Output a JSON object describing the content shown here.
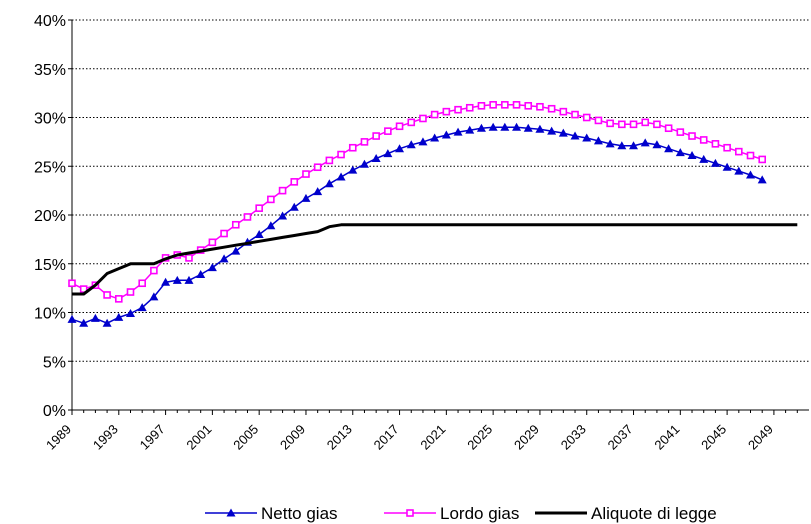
{
  "chart_data": {
    "type": "line",
    "title": "",
    "xlabel": "",
    "ylabel": "",
    "xlim": [
      1989,
      2052
    ],
    "ylim": [
      0,
      40
    ],
    "y_ticks": [
      "0%",
      "5%",
      "10%",
      "15%",
      "20%",
      "25%",
      "30%",
      "35%",
      "40%"
    ],
    "x_ticks": [
      "1989",
      "1993",
      "1997",
      "2001",
      "2005",
      "2009",
      "2013",
      "2017",
      "2021",
      "2025",
      "2029",
      "2033",
      "2037",
      "2041",
      "2045",
      "2049"
    ],
    "grid": "horizontal dotted",
    "legend_position": "bottom",
    "colors": {
      "netto": "#0000cc",
      "lordo": "#ff00ff",
      "aliquote": "#000000",
      "grid": "#000000"
    },
    "series": [
      {
        "name": "Netto gias",
        "marker": "triangle",
        "points": [
          [
            1989,
            9.3
          ],
          [
            1990,
            8.9
          ],
          [
            1991,
            9.4
          ],
          [
            1992,
            8.9
          ],
          [
            1993,
            9.5
          ],
          [
            1994,
            9.9
          ],
          [
            1995,
            10.5
          ],
          [
            1996,
            11.6
          ],
          [
            1997,
            13.1
          ],
          [
            1998,
            13.3
          ],
          [
            1999,
            13.3
          ],
          [
            2000,
            13.9
          ],
          [
            2001,
            14.6
          ],
          [
            2002,
            15.5
          ],
          [
            2003,
            16.3
          ],
          [
            2004,
            17.2
          ],
          [
            2005,
            18.0
          ],
          [
            2006,
            18.9
          ],
          [
            2007,
            19.9
          ],
          [
            2008,
            20.8
          ],
          [
            2009,
            21.7
          ],
          [
            2010,
            22.4
          ],
          [
            2011,
            23.2
          ],
          [
            2012,
            23.9
          ],
          [
            2013,
            24.6
          ],
          [
            2014,
            25.2
          ],
          [
            2015,
            25.8
          ],
          [
            2016,
            26.3
          ],
          [
            2017,
            26.8
          ],
          [
            2018,
            27.2
          ],
          [
            2019,
            27.5
          ],
          [
            2020,
            27.9
          ],
          [
            2021,
            28.2
          ],
          [
            2022,
            28.5
          ],
          [
            2023,
            28.7
          ],
          [
            2024,
            28.9
          ],
          [
            2025,
            29.0
          ],
          [
            2026,
            29.0
          ],
          [
            2027,
            29.0
          ],
          [
            2028,
            28.9
          ],
          [
            2029,
            28.8
          ],
          [
            2030,
            28.6
          ],
          [
            2031,
            28.4
          ],
          [
            2032,
            28.1
          ],
          [
            2033,
            27.9
          ],
          [
            2034,
            27.6
          ],
          [
            2035,
            27.3
          ],
          [
            2036,
            27.1
          ],
          [
            2037,
            27.1
          ],
          [
            2038,
            27.4
          ],
          [
            2039,
            27.2
          ],
          [
            2040,
            26.8
          ],
          [
            2041,
            26.4
          ],
          [
            2042,
            26.1
          ],
          [
            2043,
            25.7
          ],
          [
            2044,
            25.3
          ],
          [
            2045,
            24.9
          ],
          [
            2046,
            24.5
          ],
          [
            2047,
            24.1
          ],
          [
            2048,
            23.6
          ]
        ]
      },
      {
        "name": "Lordo gias",
        "marker": "square",
        "points": [
          [
            1989,
            13.0
          ],
          [
            1990,
            12.4
          ],
          [
            1991,
            12.8
          ],
          [
            1992,
            11.8
          ],
          [
            1993,
            11.4
          ],
          [
            1994,
            12.1
          ],
          [
            1995,
            13.0
          ],
          [
            1996,
            14.3
          ],
          [
            1997,
            15.6
          ],
          [
            1998,
            15.9
          ],
          [
            1999,
            15.6
          ],
          [
            2000,
            16.4
          ],
          [
            2001,
            17.2
          ],
          [
            2002,
            18.1
          ],
          [
            2003,
            19.0
          ],
          [
            2004,
            19.8
          ],
          [
            2005,
            20.7
          ],
          [
            2006,
            21.6
          ],
          [
            2007,
            22.5
          ],
          [
            2008,
            23.4
          ],
          [
            2009,
            24.2
          ],
          [
            2010,
            24.9
          ],
          [
            2011,
            25.6
          ],
          [
            2012,
            26.2
          ],
          [
            2013,
            26.9
          ],
          [
            2014,
            27.5
          ],
          [
            2015,
            28.1
          ],
          [
            2016,
            28.6
          ],
          [
            2017,
            29.1
          ],
          [
            2018,
            29.5
          ],
          [
            2019,
            29.9
          ],
          [
            2020,
            30.3
          ],
          [
            2021,
            30.6
          ],
          [
            2022,
            30.8
          ],
          [
            2023,
            31.0
          ],
          [
            2024,
            31.2
          ],
          [
            2025,
            31.3
          ],
          [
            2026,
            31.3
          ],
          [
            2027,
            31.3
          ],
          [
            2028,
            31.2
          ],
          [
            2029,
            31.1
          ],
          [
            2030,
            30.9
          ],
          [
            2031,
            30.6
          ],
          [
            2032,
            30.3
          ],
          [
            2033,
            30.0
          ],
          [
            2034,
            29.7
          ],
          [
            2035,
            29.4
          ],
          [
            2036,
            29.3
          ],
          [
            2037,
            29.3
          ],
          [
            2038,
            29.5
          ],
          [
            2039,
            29.3
          ],
          [
            2040,
            28.9
          ],
          [
            2041,
            28.5
          ],
          [
            2042,
            28.1
          ],
          [
            2043,
            27.7
          ],
          [
            2044,
            27.3
          ],
          [
            2045,
            26.9
          ],
          [
            2046,
            26.5
          ],
          [
            2047,
            26.1
          ],
          [
            2048,
            25.7
          ]
        ]
      },
      {
        "name": "Aliquote di legge",
        "marker": "none",
        "points": [
          [
            1989,
            11.9
          ],
          [
            1990,
            11.9
          ],
          [
            1991,
            12.8
          ],
          [
            1992,
            14.0
          ],
          [
            1993,
            14.5
          ],
          [
            1994,
            15.0
          ],
          [
            1995,
            15.0
          ],
          [
            1996,
            15.0
          ],
          [
            1997,
            15.5
          ],
          [
            1998,
            15.9
          ],
          [
            1999,
            16.1
          ],
          [
            2000,
            16.3
          ],
          [
            2001,
            16.5
          ],
          [
            2002,
            16.7
          ],
          [
            2003,
            16.9
          ],
          [
            2004,
            17.1
          ],
          [
            2005,
            17.3
          ],
          [
            2006,
            17.5
          ],
          [
            2007,
            17.7
          ],
          [
            2008,
            17.9
          ],
          [
            2009,
            18.1
          ],
          [
            2010,
            18.3
          ],
          [
            2011,
            18.8
          ],
          [
            2012,
            19.0
          ],
          [
            2013,
            19.0
          ],
          [
            2051,
            19.0
          ]
        ]
      }
    ]
  }
}
